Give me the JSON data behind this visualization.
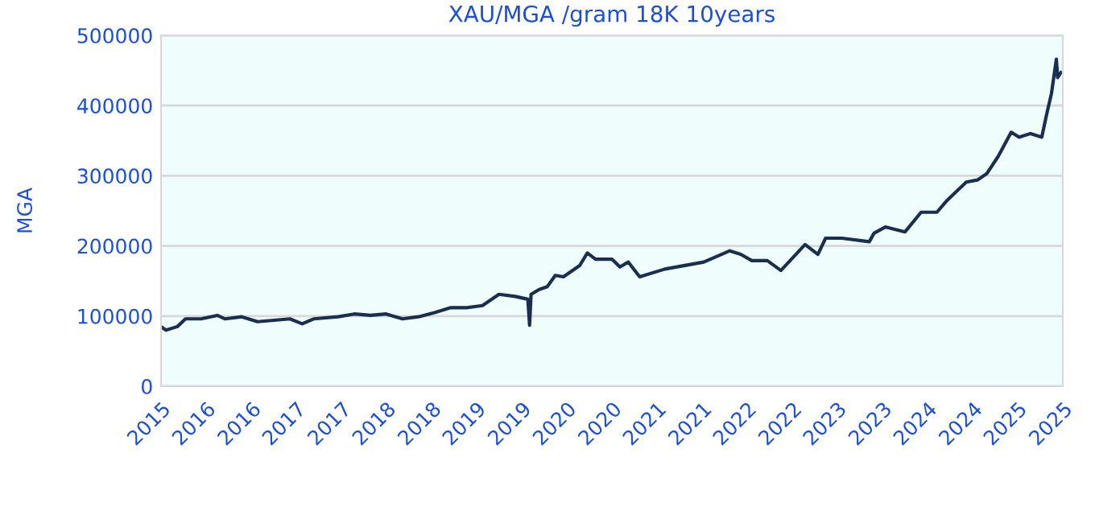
{
  "chart_data": {
    "type": "line",
    "title": "XAU/MGA /gram 18K 10years",
    "ylabel": "MGA",
    "x": [
      "2015-11-01",
      "2015-11-21",
      "2016-01-06",
      "2016-02-08",
      "2016-04-11",
      "2016-06-16",
      "2016-07-18",
      "2016-09-23",
      "2016-11-26",
      "2017-02-01",
      "2017-04-06",
      "2017-05-26",
      "2017-07-11",
      "2017-10-18",
      "2017-12-23",
      "2018-02-26",
      "2018-05-01",
      "2018-07-06",
      "2018-09-09",
      "2018-11-13",
      "2019-01-18",
      "2019-03-23",
      "2019-05-26",
      "2019-08-01",
      "2019-10-06",
      "2019-11-26",
      "2019-12-03",
      "2019-12-09",
      "2020-01-11",
      "2020-02-13",
      "2020-03-16",
      "2020-04-18",
      "2020-06-23",
      "2020-07-24",
      "2020-08-26",
      "2020-11-01",
      "2020-12-03",
      "2021-01-06",
      "2021-02-21",
      "2021-06-03",
      "2021-11-08",
      "2022-02-21",
      "2022-04-06",
      "2022-05-21",
      "2022-07-23",
      "2022-09-16",
      "2022-10-18",
      "2022-12-23",
      "2023-02-13",
      "2023-03-16",
      "2023-05-21",
      "2023-09-09",
      "2023-09-28",
      "2023-11-13",
      "2024-02-01",
      "2024-04-06",
      "2024-06-09",
      "2024-07-18",
      "2024-10-06",
      "2024-11-21",
      "2024-12-28",
      "2025-02-13",
      "2025-04-06",
      "2025-05-08",
      "2025-06-23",
      "2025-08-08",
      "2025-08-26",
      "2025-09-16",
      "2025-10-06",
      "2025-10-11",
      "2025-10-24"
    ],
    "series": [
      {
        "color": "#1a2e4f",
        "values": [
          85000,
          80000,
          85000,
          96000,
          96000,
          101000,
          96000,
          99000,
          92000,
          94000,
          96000,
          89000,
          96000,
          99000,
          103000,
          101000,
          103000,
          96000,
          99000,
          105000,
          112000,
          112000,
          115000,
          131000,
          128000,
          124000,
          87000,
          131000,
          138000,
          142000,
          158000,
          156000,
          172000,
          190000,
          181000,
          181000,
          170000,
          177000,
          156000,
          167000,
          177000,
          193000,
          188000,
          179000,
          179000,
          165000,
          177000,
          202000,
          188000,
          211000,
          211000,
          206000,
          218000,
          227000,
          220000,
          248000,
          248000,
          264000,
          291000,
          294000,
          303000,
          328000,
          362000,
          355000,
          360000,
          355000,
          385000,
          417000,
          466000,
          440000,
          447000
        ]
      }
    ],
    "xlim": [
      "2015-11-01",
      "2025-11-01"
    ],
    "xticks": [
      {
        "value": "2015-11-01",
        "label": "2015"
      },
      {
        "value": "2016-05-01",
        "label": "2016"
      },
      {
        "value": "2016-11-01",
        "label": "2016"
      },
      {
        "value": "2017-05-01",
        "label": "2017"
      },
      {
        "value": "2017-11-01",
        "label": "2017"
      },
      {
        "value": "2018-05-01",
        "label": "2018"
      },
      {
        "value": "2018-11-01",
        "label": "2018"
      },
      {
        "value": "2019-05-01",
        "label": "2019"
      },
      {
        "value": "2019-11-01",
        "label": "2019"
      },
      {
        "value": "2020-05-01",
        "label": "2020"
      },
      {
        "value": "2020-11-01",
        "label": "2020"
      },
      {
        "value": "2021-05-01",
        "label": "2021"
      },
      {
        "value": "2021-11-01",
        "label": "2021"
      },
      {
        "value": "2022-05-01",
        "label": "2022"
      },
      {
        "value": "2022-11-01",
        "label": "2022"
      },
      {
        "value": "2023-05-01",
        "label": "2023"
      },
      {
        "value": "2023-11-01",
        "label": "2023"
      },
      {
        "value": "2024-05-01",
        "label": "2024"
      },
      {
        "value": "2024-11-01",
        "label": "2024"
      },
      {
        "value": "2025-05-01",
        "label": "2025"
      },
      {
        "value": "2025-11-01",
        "label": "2025"
      }
    ],
    "ylim": [
      0,
      500000
    ],
    "yticks": [
      0,
      100000,
      200000,
      300000,
      400000,
      500000
    ],
    "grid": "y",
    "marker": "none",
    "line_style": "solid"
  }
}
